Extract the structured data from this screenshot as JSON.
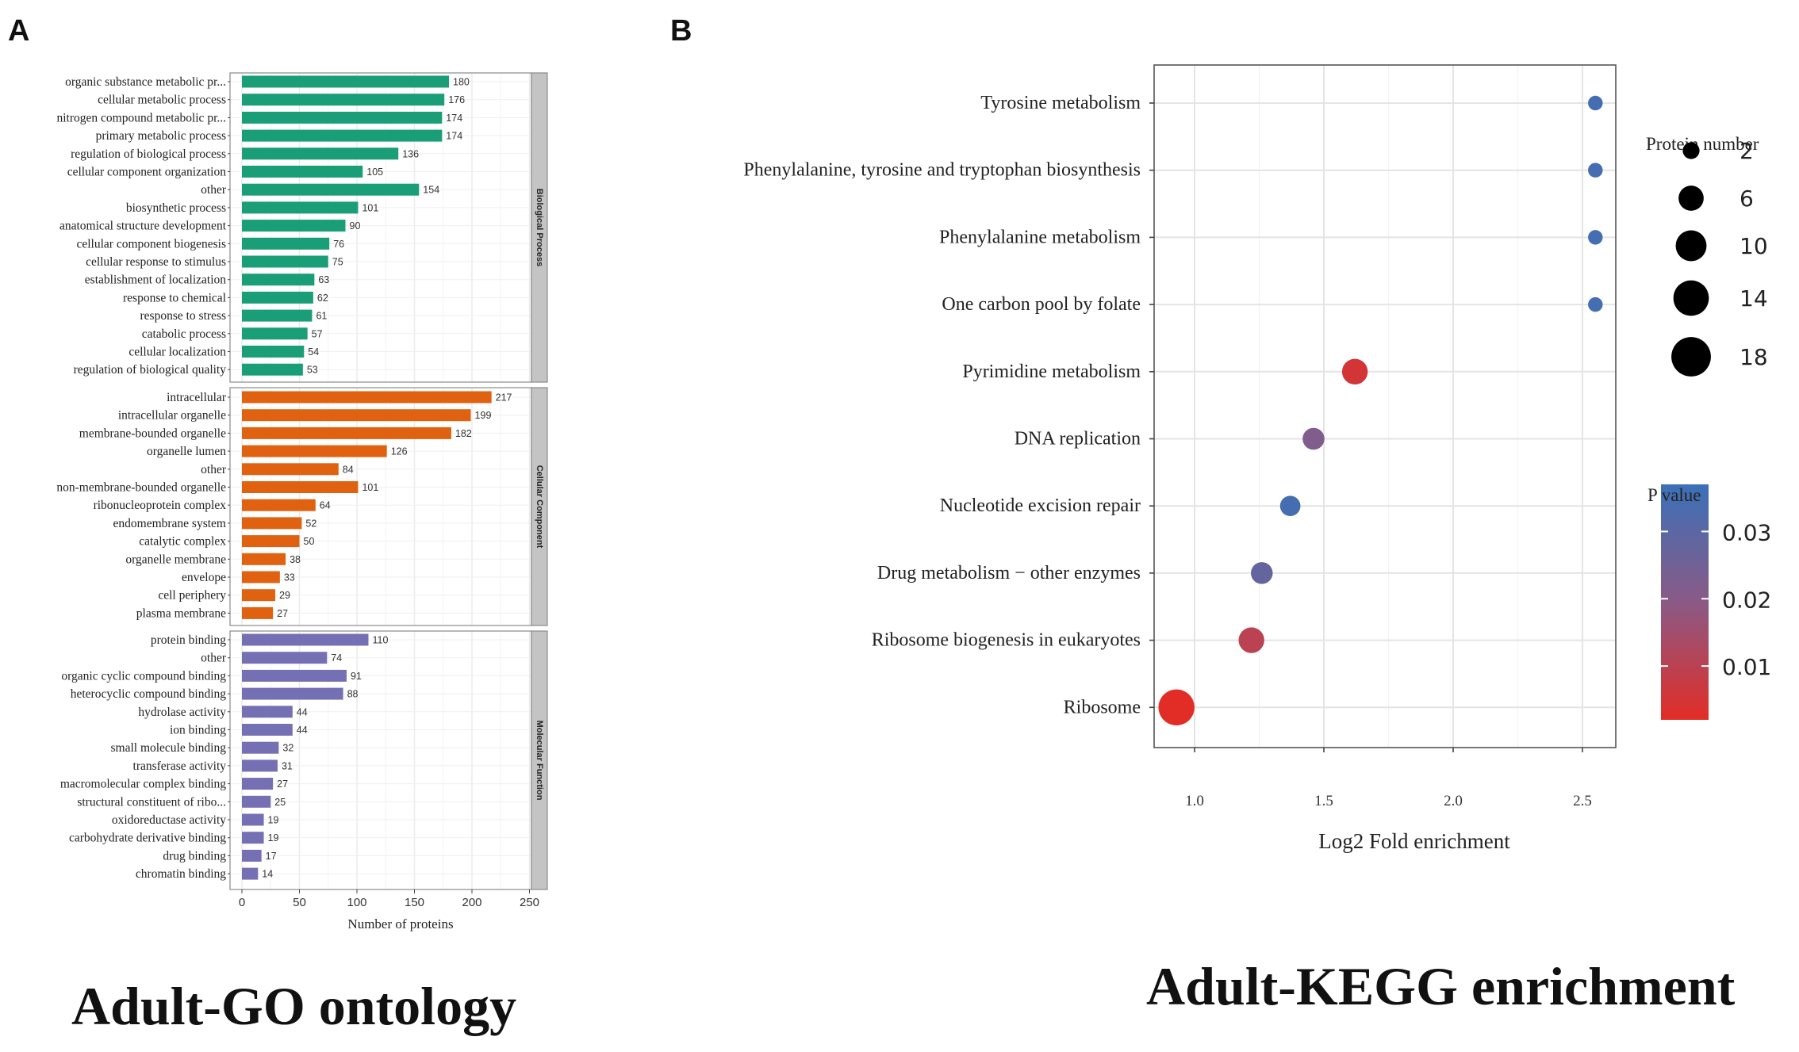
{
  "panels": {
    "a_label": "A",
    "b_label": "B"
  },
  "captions": {
    "go": "Adult-GO ontology",
    "kegg": "Adult-KEGG enrichment"
  },
  "chart_data": [
    {
      "type": "bar",
      "orientation": "horizontal",
      "title": "",
      "xlabel": "Number of proteins",
      "ylabel": "",
      "xlim": [
        0,
        250
      ],
      "xticks": [
        0,
        50,
        100,
        150,
        200,
        250
      ],
      "grid": true,
      "colors": {
        "Biological Process": "#1a9e77",
        "Cellular Component": "#e06211",
        "Molecular Function": "#7570b4",
        "strip": "#c4c4c4",
        "frame": "#8a8a8a"
      },
      "groups": [
        {
          "name": "Biological Process",
          "categories": [
            "organic substance metabolic pr...",
            "cellular metabolic process",
            "nitrogen compound metabolic pr...",
            "primary metabolic process",
            "regulation of biological process",
            "cellular component organization",
            "other",
            "biosynthetic process",
            "anatomical structure development",
            "cellular component biogenesis",
            "cellular response to stimulus",
            "establishment of localization",
            "response to chemical",
            "response to stress",
            "catabolic process",
            "cellular localization",
            "regulation of biological quality"
          ],
          "values": [
            180,
            176,
            174,
            174,
            136,
            105,
            154,
            101,
            90,
            76,
            75,
            63,
            62,
            61,
            57,
            54,
            53
          ]
        },
        {
          "name": "Cellular Component",
          "categories": [
            "intracellular",
            "intracellular organelle",
            "membrane-bounded organelle",
            "organelle lumen",
            "other",
            "non-membrane-bounded organelle",
            "ribonucleoprotein complex",
            "endomembrane system",
            "catalytic complex",
            "organelle membrane",
            "envelope",
            "cell periphery",
            "plasma membrane"
          ],
          "values": [
            217,
            199,
            182,
            126,
            84,
            101,
            64,
            52,
            50,
            38,
            33,
            29,
            27
          ]
        },
        {
          "name": "Molecular Function",
          "categories": [
            "protein binding",
            "other",
            "organic cyclic compound binding",
            "heterocyclic compound binding",
            "hydrolase activity",
            "ion binding",
            "small molecule binding",
            "transferase activity",
            "macromolecular complex binding",
            "structural constituent of ribo...",
            "oxidoreductase activity",
            "carbohydrate derivative binding",
            "drug binding",
            "chromatin binding"
          ],
          "values": [
            110,
            74,
            91,
            88,
            44,
            44,
            32,
            31,
            27,
            25,
            19,
            19,
            17,
            14
          ]
        }
      ]
    },
    {
      "type": "scatter",
      "title": "",
      "xlabel": "Log2 Fold enrichment",
      "ylabel": "",
      "xlim": [
        0.85,
        2.63
      ],
      "xticks": [
        "1.0",
        "1.5",
        "2.0",
        "2.5"
      ],
      "grid": true,
      "categories": [
        "Tyrosine metabolism",
        "Phenylalanine, tyrosine and tryptophan biosynthesis",
        "Phenylalanine metabolism",
        "One carbon pool by folate",
        "Pyrimidine metabolism",
        "DNA replication",
        "Nucleotide excision repair",
        "Drug metabolism − other enzymes",
        "Ribosome biogenesis in eukaryotes",
        "Ribosome"
      ],
      "x": [
        2.55,
        2.55,
        2.55,
        2.55,
        1.62,
        1.46,
        1.37,
        1.26,
        1.22,
        0.93
      ],
      "protein_number": [
        2,
        2,
        2,
        2,
        9,
        6,
        5,
        6,
        9,
        20
      ],
      "p_value": [
        0.035,
        0.035,
        0.035,
        0.035,
        0.005,
        0.022,
        0.035,
        0.028,
        0.01,
        0.001
      ],
      "size_legend": {
        "title": "Protein number",
        "labels": [
          "2",
          "6",
          "10",
          "14",
          "18"
        ],
        "values": [
          2,
          6,
          10,
          14,
          18
        ]
      },
      "color_legend": {
        "title": "P value",
        "labels": [
          "0.03",
          "0.02",
          "0.01"
        ],
        "values": [
          0.03,
          0.02,
          0.01
        ],
        "range": [
          0.002,
          0.037
        ]
      },
      "colors": {
        "low": "#e22d26",
        "mid": "#8a5a86",
        "high": "#3b70b8"
      }
    }
  ]
}
